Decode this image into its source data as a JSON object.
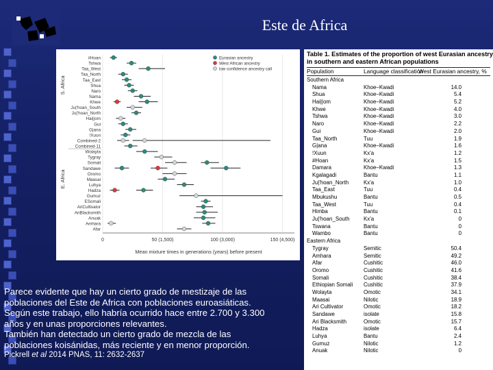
{
  "slide": {
    "title": "Este de Africa",
    "caption_lines": [
      "Parece evidente que hay un cierto grado de mestizaje de las",
      "poblaciones del Este de Africa con poblaciones euroasiáticas.",
      "Según este trabajo, ello habría ocurrido hace entre 2.700 y 3.300",
      "años y en unas proporciones relevantes.",
      "También han detectado un cierto grado de mezcla de las",
      "poblaciones koisánidas, más reciente y en menor proporción."
    ],
    "citation_prefix": "Pickrell ",
    "citation_italic": "et al",
    "citation_suffix": " 2014 PNAS, 11: 2632-2637"
  },
  "colors": {
    "eurasian": "#2a8b7d",
    "west_african": "#d9383f",
    "low_confidence": "#cfd8d8"
  },
  "chart_data": {
    "type": "scatter",
    "xlabel": "Mean mixture times in generations (years) before present",
    "x_ticks": [
      "0",
      "50 (1,500)",
      "100 (3,000)",
      "150 (4,500)"
    ],
    "x_tick_values": [
      0,
      50,
      100,
      150
    ],
    "xlim": [
      0,
      160
    ],
    "legend": [
      "Eurasian ancestry",
      "West African ancestry",
      "low confidence ancestry call"
    ],
    "group_labels": [
      "S. Africa",
      "E. Africa"
    ],
    "populations": [
      "#Hoan",
      "Tshwa",
      "Taa_West",
      "Taa_North",
      "Taa_East",
      "Shua",
      "Naro",
      "Nama",
      "Khwe",
      "Ju|'hoan_South",
      "Ju|'hoan_North",
      "Hai||om",
      "Gui",
      "G|ana",
      "!Xuun",
      "Combined-2",
      "Combined-11",
      "Wolayta",
      "Tygray",
      "Somali",
      "Sandawe",
      "Oromo",
      "Maasai",
      "Luhya",
      "Hadza",
      "Gumuz",
      "ESomali",
      "AriCultivator",
      "AriBlacksmith",
      "Anuak",
      "Amhara",
      "Afar"
    ],
    "points": [
      {
        "pop": "#Hoan",
        "x": 9,
        "lo": 6,
        "hi": 12,
        "type": "eurasian"
      },
      {
        "pop": "Tshwa",
        "x": 24,
        "lo": 20,
        "hi": 28,
        "type": "eurasian"
      },
      {
        "pop": "Taa_West",
        "x": 38,
        "lo": 30,
        "hi": 52,
        "type": "eurasian"
      },
      {
        "pop": "Taa_North",
        "x": 17,
        "lo": 13,
        "hi": 21,
        "type": "eurasian"
      },
      {
        "pop": "Taa_East",
        "x": 20,
        "lo": 16,
        "hi": 24,
        "type": "eurasian"
      },
      {
        "pop": "Shua",
        "x": 22,
        "lo": 18,
        "hi": 26,
        "type": "eurasian"
      },
      {
        "pop": "Naro",
        "x": 25,
        "lo": 21,
        "hi": 29,
        "type": "eurasian"
      },
      {
        "pop": "Nama",
        "x": 32,
        "lo": 26,
        "hi": 40,
        "type": "eurasian"
      },
      {
        "pop": "Khwe",
        "x": 12,
        "lo": 9,
        "hi": 15,
        "type": "west_african"
      },
      {
        "pop": "Khwe",
        "x": 37,
        "lo": 30,
        "hi": 46,
        "type": "eurasian"
      },
      {
        "pop": "Ju|'hoan_South",
        "x": 25,
        "lo": 20,
        "hi": 33,
        "type": "low_confidence"
      },
      {
        "pop": "Ju|'hoan_North",
        "x": 28,
        "lo": 24,
        "hi": 32,
        "type": "eurasian"
      },
      {
        "pop": "Hai||om",
        "x": 15,
        "lo": 11,
        "hi": 19,
        "type": "low_confidence"
      },
      {
        "pop": "Gui",
        "x": 17,
        "lo": 13,
        "hi": 21,
        "type": "eurasian"
      },
      {
        "pop": "G|ana",
        "x": 23,
        "lo": 19,
        "hi": 28,
        "type": "eurasian"
      },
      {
        "pop": "!Xuun",
        "x": 19,
        "lo": 15,
        "hi": 23,
        "type": "eurasian"
      },
      {
        "pop": "Combined-2",
        "x": 17,
        "lo": 12,
        "hi": 22,
        "type": "low_confidence"
      },
      {
        "pop": "Combined-2",
        "x": 35,
        "lo": 25,
        "hi": 140,
        "type": "low_confidence"
      },
      {
        "pop": "Combined-11",
        "x": 23,
        "lo": 18,
        "hi": 29,
        "type": "eurasian"
      },
      {
        "pop": "Wolayta",
        "x": 35,
        "lo": 28,
        "hi": 46,
        "type": "eurasian"
      },
      {
        "pop": "Tygray",
        "x": 49,
        "lo": 43,
        "hi": 58,
        "type": "low_confidence"
      },
      {
        "pop": "Somali",
        "x": 60,
        "lo": 52,
        "hi": 70,
        "type": "low_confidence"
      },
      {
        "pop": "Somali",
        "x": 87,
        "lo": 82,
        "hi": 97,
        "type": "eurasian"
      },
      {
        "pop": "Sandawe",
        "x": 16,
        "lo": 10,
        "hi": 22,
        "type": "eurasian"
      },
      {
        "pop": "Sandawe",
        "x": 46,
        "lo": 40,
        "hi": 54,
        "type": "west_african"
      },
      {
        "pop": "Sandawe",
        "x": 103,
        "lo": 90,
        "hi": 115,
        "type": "eurasian"
      },
      {
        "pop": "Oromo",
        "x": 60,
        "lo": 50,
        "hi": 70,
        "type": "low_confidence"
      },
      {
        "pop": "Maasai",
        "x": 52,
        "lo": 46,
        "hi": 60,
        "type": "eurasian"
      },
      {
        "pop": "Luhya",
        "x": 68,
        "lo": 62,
        "hi": 76,
        "type": "eurasian"
      },
      {
        "pop": "Hadza",
        "x": 10,
        "lo": 6,
        "hi": 14,
        "type": "west_african"
      },
      {
        "pop": "Hadza",
        "x": 34,
        "lo": 28,
        "hi": 42,
        "type": "eurasian"
      },
      {
        "pop": "Gumuz",
        "x": 78,
        "lo": 64,
        "hi": 150,
        "type": "low_confidence"
      },
      {
        "pop": "ESomali",
        "x": 86,
        "lo": 82,
        "hi": 90,
        "type": "eurasian"
      },
      {
        "pop": "AriCultivator",
        "x": 84,
        "lo": 78,
        "hi": 92,
        "type": "eurasian"
      },
      {
        "pop": "AriBlacksmith",
        "x": 85,
        "lo": 78,
        "hi": 96,
        "type": "eurasian"
      },
      {
        "pop": "Anuak",
        "x": 84,
        "lo": 76,
        "hi": 94,
        "type": "eurasian"
      },
      {
        "pop": "Amhara",
        "x": 7,
        "lo": 4,
        "hi": 11,
        "type": "low_confidence"
      },
      {
        "pop": "Amhara",
        "x": 88,
        "lo": 83,
        "hi": 94,
        "type": "eurasian"
      },
      {
        "pop": "Afar",
        "x": 68,
        "lo": 62,
        "hi": 74,
        "type": "low_confidence"
      }
    ]
  },
  "table": {
    "title": "Table 1.  Estimates of the proportion of west Eurasian ancestry in southern and eastern African populations",
    "columns": [
      "Population",
      "Language classification",
      "West Eurasian ancestry, %"
    ],
    "rows": [
      {
        "pop": "Southern Africa",
        "group": true
      },
      {
        "pop": "Nama",
        "lang": "Khoe–Kwadi",
        "val": "14.0"
      },
      {
        "pop": "Shua",
        "lang": "Khoe–Kwadi",
        "val": "5.4"
      },
      {
        "pop": "Hai||om",
        "lang": "Khoe–Kwadi",
        "val": "5.2"
      },
      {
        "pop": "Khwe",
        "lang": "Khoe–Kwadi",
        "val": "4.0"
      },
      {
        "pop": "Tshwa",
        "lang": "Khoe–Kwadi",
        "val": "3.0"
      },
      {
        "pop": "Naro",
        "lang": "Khoe–Kwadi",
        "val": "2.2"
      },
      {
        "pop": "Gui",
        "lang": "Khoe–Kwadi",
        "val": "2.0"
      },
      {
        "pop": "Taa_North",
        "lang": "Tuu",
        "val": "1.9"
      },
      {
        "pop": "G|ana",
        "lang": "Khoe–Kwadi",
        "val": "1.6"
      },
      {
        "pop": "!Xuun",
        "lang": "Kx'a",
        "val": "1.2"
      },
      {
        "pop": "#Hoan",
        "lang": "Kx'a",
        "val": "1.5"
      },
      {
        "pop": "Damara",
        "lang": "Khoe–Kwadi",
        "val": "1.3"
      },
      {
        "pop": "Kgalagadi",
        "lang": "Bantu",
        "val": "1.1"
      },
      {
        "pop": "Ju|'hoan_North",
        "lang": "Kx'a",
        "val": "1.0"
      },
      {
        "pop": "Taa_East",
        "lang": "Tuu",
        "val": "0.4"
      },
      {
        "pop": "Mbukushu",
        "lang": "Bantu",
        "val": "0.5"
      },
      {
        "pop": "Taa_West",
        "lang": "Tuu",
        "val": "0.4"
      },
      {
        "pop": "Himba",
        "lang": "Bantu",
        "val": "0.1"
      },
      {
        "pop": "Ju|'hoan_South",
        "lang": "Kx'a",
        "val": "0"
      },
      {
        "pop": "Tswana",
        "lang": "Bantu",
        "val": "0"
      },
      {
        "pop": "Wambo",
        "lang": "Bantu",
        "val": "0"
      },
      {
        "pop": "Eastern Africa",
        "group": true
      },
      {
        "pop": "Tygray",
        "lang": "Semitic",
        "val": "50.4"
      },
      {
        "pop": "Amhara",
        "lang": "Semitic",
        "val": "49.2"
      },
      {
        "pop": "Afar",
        "lang": "Cushitic",
        "val": "46.0"
      },
      {
        "pop": "Oromo",
        "lang": "Cushitic",
        "val": "41.6"
      },
      {
        "pop": "Somali",
        "lang": "Cushitic",
        "val": "38.4"
      },
      {
        "pop": "Ethiopian Somali",
        "lang": "Cushitic",
        "val": "37.9"
      },
      {
        "pop": "Wolayta",
        "lang": "Omotic",
        "val": "34.1"
      },
      {
        "pop": "Maasai",
        "lang": "Nilotic",
        "val": "18.9"
      },
      {
        "pop": "Ari Cultivator",
        "lang": "Omotic",
        "val": "18.2"
      },
      {
        "pop": "Sandawe",
        "lang": "isolate",
        "val": "15.8"
      },
      {
        "pop": "Ari Blacksmith",
        "lang": "Omotic",
        "val": "15.7"
      },
      {
        "pop": "Hadza",
        "lang": "isolate",
        "val": "6.4"
      },
      {
        "pop": "Luhya",
        "lang": "Bantu",
        "val": "2.4"
      },
      {
        "pop": "Gumuz",
        "lang": "Nilotic",
        "val": "1.2"
      },
      {
        "pop": "Anuak",
        "lang": "Nilotic",
        "val": "0"
      }
    ]
  }
}
